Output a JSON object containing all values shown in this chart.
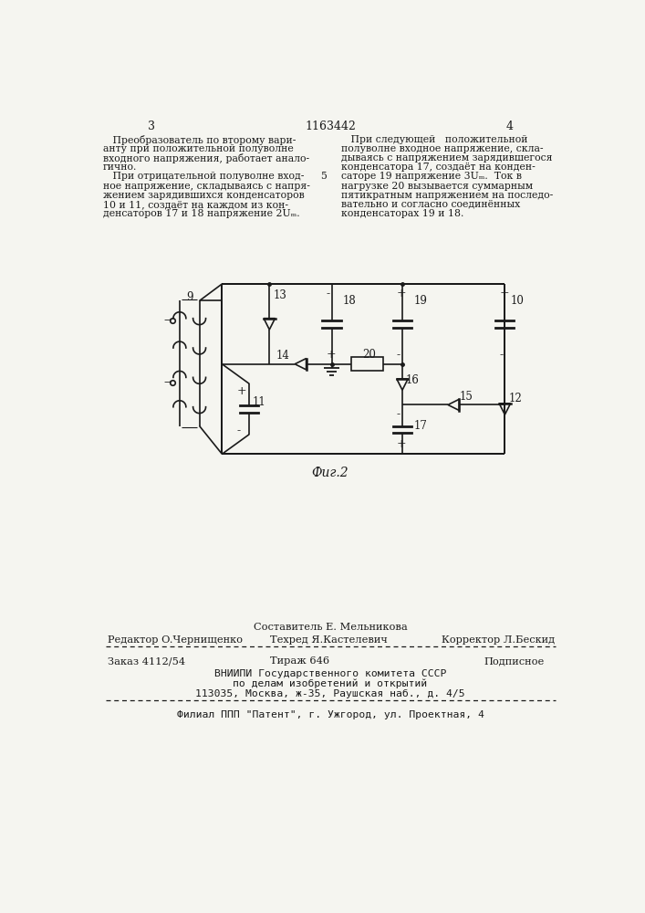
{
  "page_num_left": "3",
  "patent_num": "1163442",
  "page_num_right": "4",
  "col_left_text": [
    "   Преобразователь по второму вари-",
    "анту при положительной полуволне",
    "входного напряжения, работает анало-",
    "гично.",
    "   При отрицательной полуволне вход-",
    "ное напряжение, складываясь с напря-",
    "жением зарядившихся конденсаторов",
    "10 и 11, создаёт на каждом из кон-",
    "денсаторов 17 и 18 напряжение 2Uₘ."
  ],
  "col_right_text": [
    "   При следующей   положительной",
    "полуволне входное напряжение, скла-",
    "дываясь с напряжением зарядившегося",
    "конденсатора 17, создаёт на конден-",
    "саторе 19 напряжение 3Uₘ.  Ток в",
    "нагрузке 20 вызывается суммарным",
    "пятикратным напряжением на последо-",
    "вательно и согласно соединённых",
    "конденсаторах 19 и 18."
  ],
  "line_number": "5",
  "fig_caption": "Фиг.2",
  "footer_line1_left": "Редактор O.Чернищенко",
  "footer_line1_center_top": "Составитель Е. Мельникова",
  "footer_line1_center": "Техред Я.Кастелевич",
  "footer_line1_right": "Корректор Л.Бескид",
  "footer_line2_left": "Заказ 4112/54",
  "footer_line2_center": "Тираж 646",
  "footer_line2_right": "Подписное",
  "footer_line3": "ВНИИПИ Государственного комитета СССР",
  "footer_line4": "по делам изобретений и открытий",
  "footer_line5": "113035, Москва, ж-35, Раушская наб., д. 4/5",
  "footer_line6": "Филиал ППП \"Патент\", г. Ужгород, ул. Проектная, 4",
  "bg_color": "#f5f5f0",
  "text_color": "#1a1a1a"
}
